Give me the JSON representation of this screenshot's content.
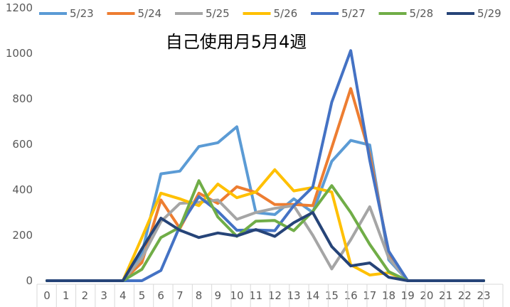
{
  "chart_data": {
    "type": "line",
    "title": "自己使用月5月4週",
    "xlabel": "",
    "ylabel": "",
    "x": [
      0,
      1,
      2,
      3,
      4,
      5,
      6,
      7,
      8,
      9,
      10,
      11,
      12,
      13,
      14,
      15,
      16,
      17,
      18,
      19,
      20,
      21,
      22,
      23
    ],
    "xlim": [
      0,
      23
    ],
    "ylim": [
      0,
      1200
    ],
    "yticks": [
      0,
      200,
      400,
      600,
      800,
      1000,
      1200
    ],
    "grid": false,
    "legend_position": "top",
    "series": [
      {
        "name": "5/23",
        "color": "#5b9bd5",
        "values": [
          0,
          0,
          0,
          0,
          0,
          120,
          470,
          482,
          590,
          607,
          677,
          300,
          291,
          360,
          300,
          525,
          617,
          597,
          92,
          0,
          0,
          0,
          0,
          0
        ]
      },
      {
        "name": "5/24",
        "color": "#ed7d31",
        "values": [
          0,
          0,
          0,
          0,
          0,
          80,
          355,
          230,
          385,
          340,
          413,
          388,
          335,
          335,
          330,
          585,
          845,
          555,
          120,
          0,
          0,
          0,
          0,
          0
        ]
      },
      {
        "name": "5/25",
        "color": "#a5a5a5",
        "values": [
          0,
          0,
          0,
          0,
          0,
          100,
          260,
          340,
          345,
          355,
          270,
          300,
          318,
          330,
          200,
          52,
          180,
          325,
          100,
          0,
          0,
          0,
          0,
          0
        ]
      },
      {
        "name": "5/26",
        "color": "#ffc000",
        "values": [
          0,
          0,
          0,
          0,
          0,
          190,
          385,
          360,
          330,
          425,
          365,
          390,
          488,
          395,
          410,
          390,
          70,
          25,
          35,
          0,
          0,
          0,
          0,
          0
        ]
      },
      {
        "name": "5/27",
        "color": "#4472c4",
        "values": [
          0,
          0,
          0,
          0,
          0,
          0,
          45,
          240,
          370,
          305,
          222,
          223,
          220,
          330,
          412,
          785,
          1012,
          530,
          130,
          0,
          0,
          0,
          0,
          0
        ]
      },
      {
        "name": "5/28",
        "color": "#70ad47",
        "values": [
          0,
          0,
          0,
          0,
          0,
          50,
          190,
          235,
          440,
          280,
          195,
          262,
          265,
          220,
          305,
          418,
          300,
          160,
          40,
          0,
          0,
          0,
          0,
          0
        ]
      },
      {
        "name": "5/29",
        "color": "#264478",
        "values": [
          0,
          0,
          0,
          0,
          0,
          140,
          275,
          222,
          190,
          210,
          197,
          225,
          195,
          255,
          300,
          150,
          65,
          78,
          15,
          0,
          0,
          0,
          0,
          0
        ]
      }
    ]
  }
}
